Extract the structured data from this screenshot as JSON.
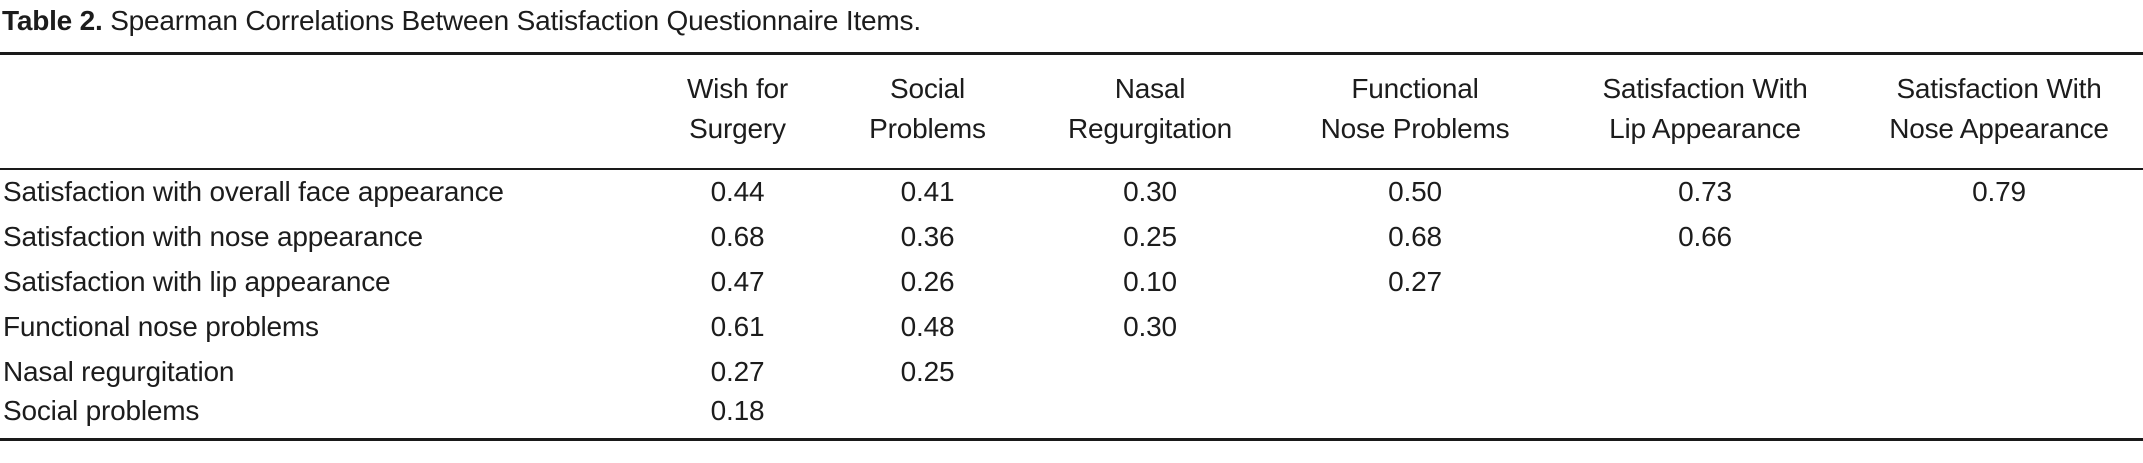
{
  "caption": {
    "label": "Table 2.",
    "text": "Spearman Correlations Between Satisfaction Questionnaire Items."
  },
  "table": {
    "columns": [
      {
        "line1": "Wish for",
        "line2": "Surgery"
      },
      {
        "line1": "Social",
        "line2": "Problems"
      },
      {
        "line1": "Nasal",
        "line2": "Regurgitation"
      },
      {
        "line1": "Functional",
        "line2": "Nose Problems"
      },
      {
        "line1": "Satisfaction With",
        "line2": "Lip Appearance"
      },
      {
        "line1": "Satisfaction With",
        "line2": "Nose Appearance"
      }
    ],
    "rows": [
      {
        "label": "Satisfaction with overall face appearance",
        "values": [
          "0.44",
          "0.41",
          "0.30",
          "0.50",
          "0.73",
          "0.79"
        ]
      },
      {
        "label": "Satisfaction with nose appearance",
        "values": [
          "0.68",
          "0.36",
          "0.25",
          "0.68",
          "0.66",
          ""
        ]
      },
      {
        "label": "Satisfaction with lip appearance",
        "values": [
          "0.47",
          "0.26",
          "0.10",
          "0.27",
          "",
          ""
        ]
      },
      {
        "label": "Functional nose problems",
        "values": [
          "0.61",
          "0.48",
          "0.30",
          "",
          "",
          ""
        ]
      },
      {
        "label": "Nasal regurgitation",
        "values": [
          "0.27",
          "0.25",
          "",
          "",
          "",
          ""
        ]
      },
      {
        "label": "Social problems",
        "values": [
          "0.18",
          "",
          "",
          "",
          "",
          ""
        ]
      }
    ]
  }
}
